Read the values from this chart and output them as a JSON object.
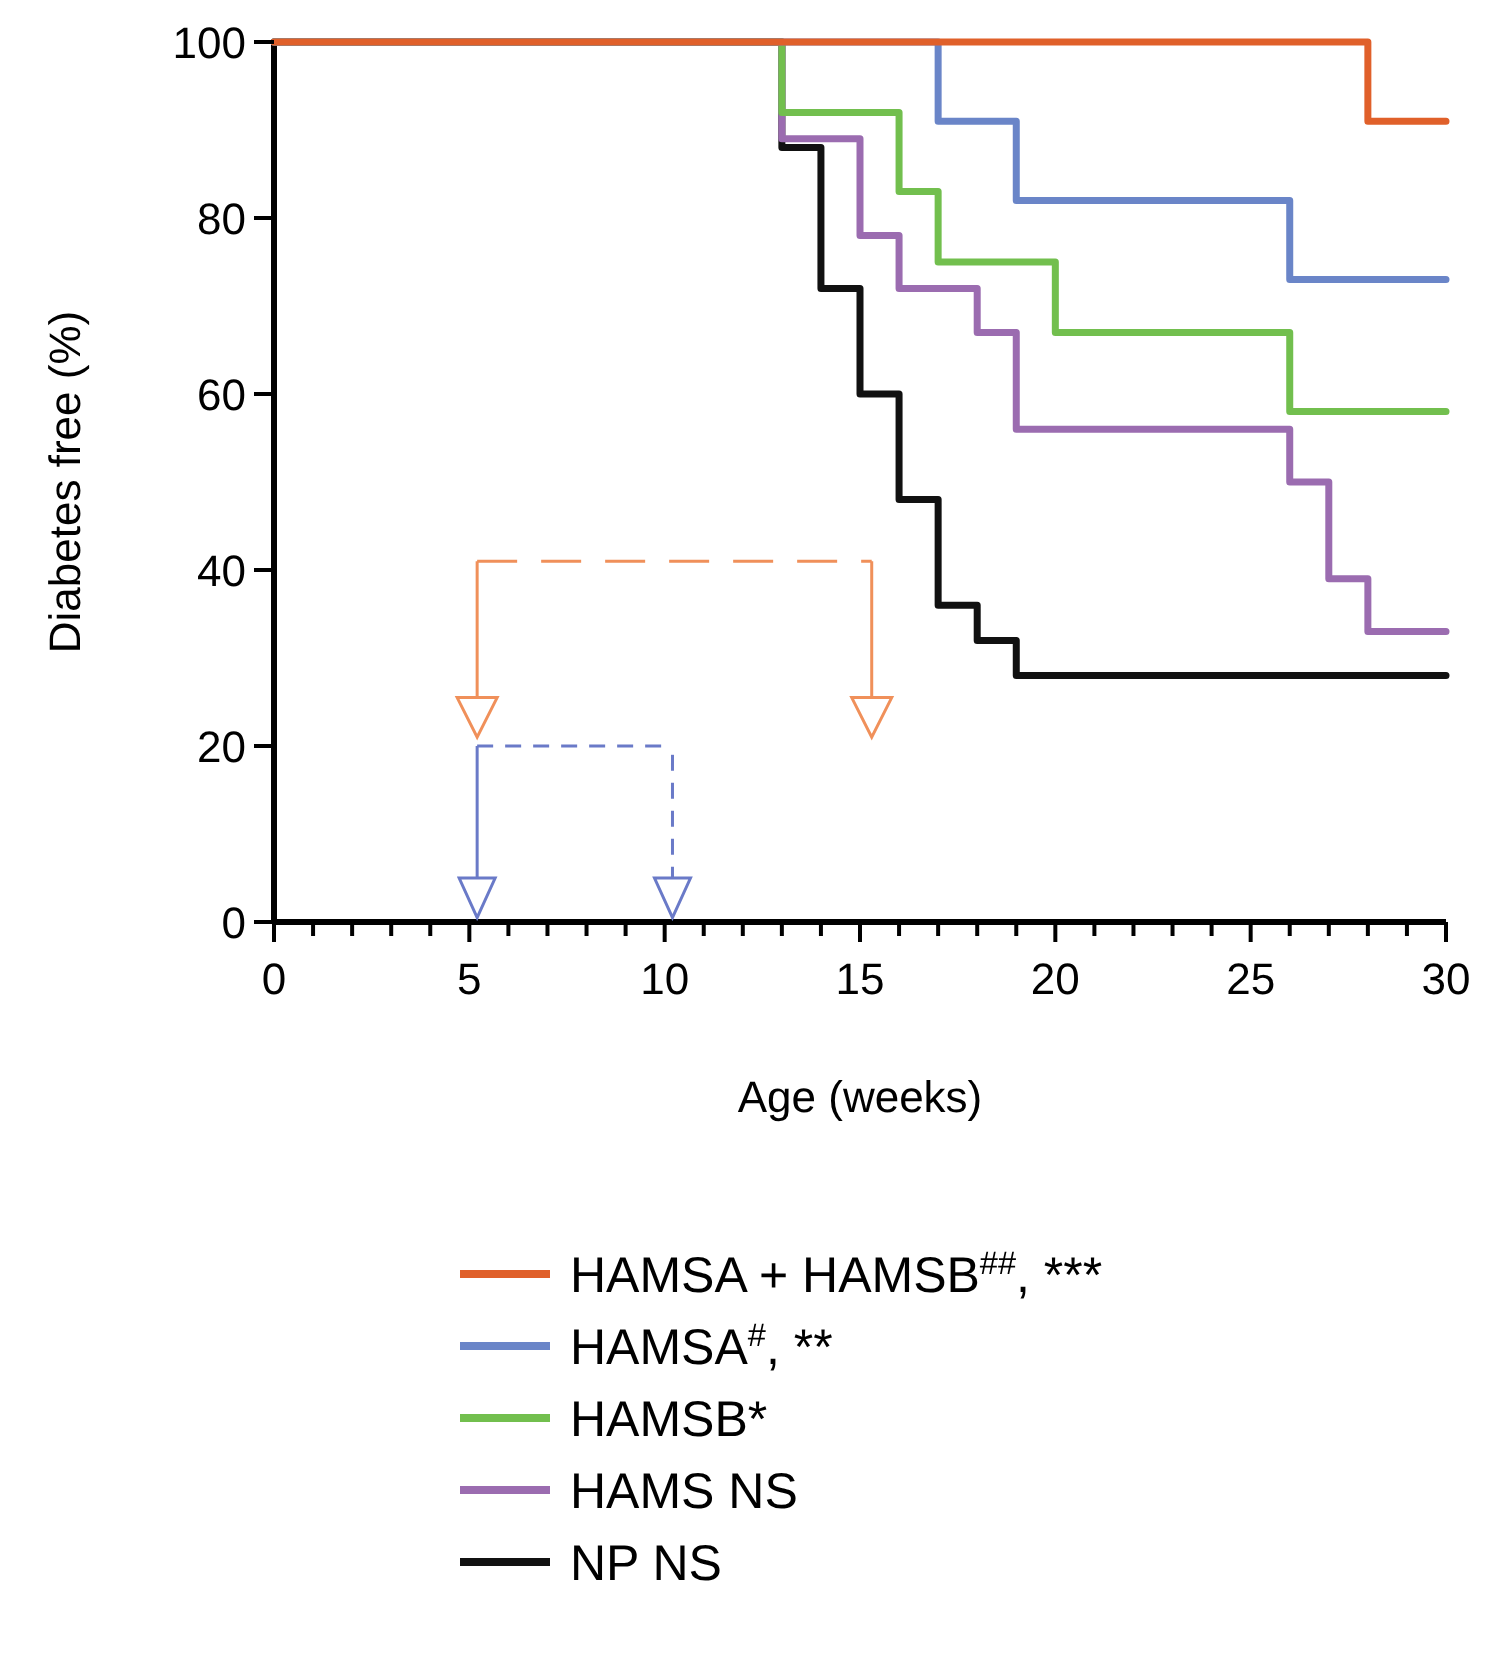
{
  "chart_data": {
    "type": "step",
    "xlabel": "Age (weeks)",
    "ylabel": "Diabetes free (%)",
    "xlim": [
      0,
      30
    ],
    "ylim": [
      0,
      100
    ],
    "xticks": [
      0,
      {
        "value": 1,
        "label": null
      },
      {
        "value": 2,
        "label": null
      },
      {
        "value": 3,
        "label": null
      },
      {
        "value": 4,
        "label": null
      },
      5,
      {
        "value": 6,
        "label": null
      },
      {
        "value": 7,
        "label": null
      },
      {
        "value": 8,
        "label": null
      },
      {
        "value": 9,
        "label": null
      },
      10,
      {
        "value": 11,
        "label": null
      },
      {
        "value": 12,
        "label": null
      },
      {
        "value": 13,
        "label": null
      },
      {
        "value": 14,
        "label": null
      },
      15,
      {
        "value": 16,
        "label": null
      },
      {
        "value": 17,
        "label": null
      },
      {
        "value": 18,
        "label": null
      },
      {
        "value": 19,
        "label": null
      },
      20,
      {
        "value": 21,
        "label": null
      },
      {
        "value": 22,
        "label": null
      },
      {
        "value": 23,
        "label": null
      },
      {
        "value": 24,
        "label": null
      },
      25,
      {
        "value": 26,
        "label": null
      },
      {
        "value": 27,
        "label": null
      },
      {
        "value": 28,
        "label": null
      },
      {
        "value": 29,
        "label": null
      },
      30
    ],
    "yticks": [
      0,
      20,
      40,
      60,
      80,
      100
    ],
    "legend": "bottom",
    "grid": false,
    "marker": "none",
    "line_style": "solid",
    "series": [
      {
        "name": "NP NS",
        "color": "#111111",
        "x": [
          0,
          13,
          14,
          15,
          16,
          17,
          18,
          19,
          30
        ],
        "values": [
          100,
          88,
          72,
          60,
          48,
          36,
          32,
          28,
          28
        ]
      },
      {
        "name": "HAMS NS",
        "color": "#9b6cb0",
        "x": [
          0,
          13,
          15,
          16,
          18,
          19,
          26,
          27,
          28,
          30
        ],
        "values": [
          100,
          89,
          78,
          72,
          67,
          56,
          50,
          39,
          33,
          33
        ]
      },
      {
        "name": "HAMSB*",
        "color": "#72bf4e",
        "x": [
          0,
          13,
          16,
          17,
          20,
          26,
          30
        ],
        "values": [
          100,
          92,
          83,
          75,
          67,
          58,
          58
        ]
      },
      {
        "name": "HAMSA$^{#}$, **",
        "color": "#6a85c8",
        "x": [
          0,
          17,
          19,
          26,
          30
        ],
        "values": [
          100,
          91,
          82,
          73,
          73
        ]
      },
      {
        "name": "HAMSA + HAMSB$^{##}$, ***",
        "color": "#e0602a",
        "x": [
          0,
          10,
          20,
          27,
          28,
          30
        ],
        "values": [
          100,
          100,
          100,
          100,
          91,
          91
        ]
      }
    ]
  }
}
